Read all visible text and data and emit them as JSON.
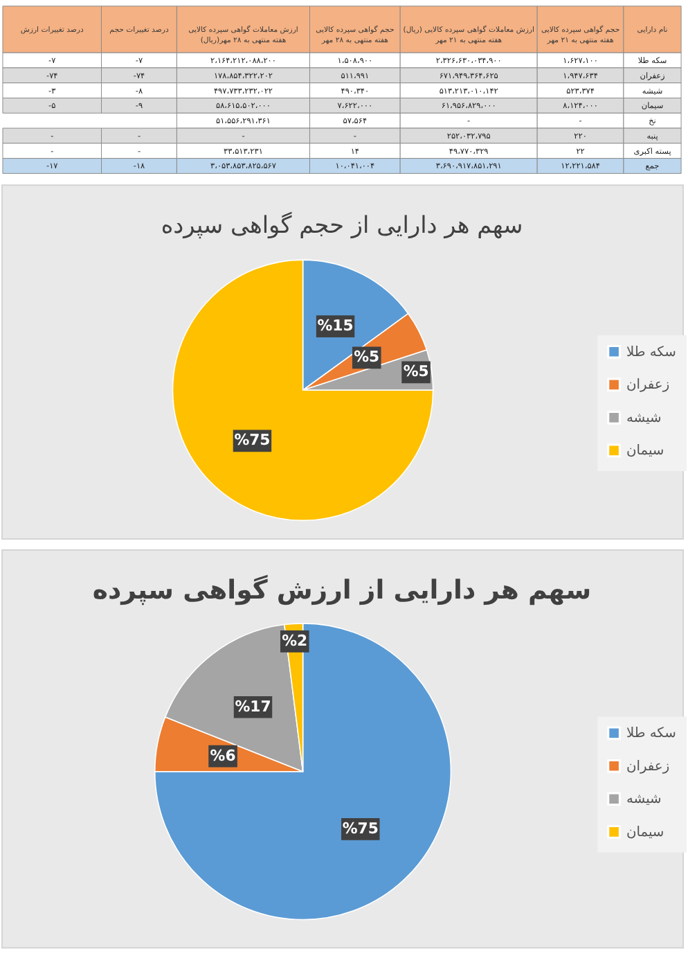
{
  "chart_data": [
    {
      "type": "other",
      "ylabel": "نام دارایی",
      "categories": [
        "درصد تغییرات ارزش",
        "درصد تغییرات حجم",
        "ارزش معاملات گواهی سپرده کالایی (ریال)هفته منتهی به ۲۸ مهر",
        "حجم گواهی سپرده کالایی هفته منتهی به ۲۸ مهر",
        "ارزش معاملات گواهی سپرده کالایی (ریال) هفته منتهی به ۲۱ مهر",
        "حجم گواهی سپرده کالایی هفته منتهی به ۲۱ مهر"
      ],
      "y_categories": [
        "سکه طلا",
        "زعفران",
        "شیشه",
        "سیمان",
        "نخ",
        "پنبه",
        "پسته اکبری",
        "جمع"
      ],
      "cell_labels": [
        [
          "-۷",
          "-۷",
          "۲،۱۶۴،۲۱۲،۰۸۸،۲۰۰",
          "۱،۵۰۸،۹۰۰",
          "۲،۳۲۶،۶۳۰،۰۳۴،۹۰۰",
          "۱،۶۲۷،۱۰۰"
        ],
        [
          "-۷۴",
          "-۷۴",
          "۱۷۸،۸۵۴،۳۲۲،۲۰۲",
          "۵۱۱،۹۹۱",
          "۶۷۱،۹۴۹،۳۶۴،۶۲۵",
          "۱،۹۴۷،۶۳۴"
        ],
        [
          "-۳",
          "-۸",
          "۴۹۷،۷۳۳،۲۳۲،۰۲۲",
          "۴۹۰،۳۴۰",
          "۵۱۳،۲۱۳،۰۱۰،۱۴۲",
          "۵۲۳،۳۷۴"
        ],
        [
          "-۵",
          "-۹",
          "۵۸،۶۱۵،۵۰۲،۰۰۰",
          "۷،۶۲۲،۰۰۰",
          "۶۱،۹۵۶،۸۲۹،۰۰۰",
          "۸،۱۲۴،۰۰۰"
        ],
        [
          null,
          null,
          "۵۱،۵۵۶،۲۹۱،۳۶۱",
          "۵۷،۵۶۴",
          "-",
          "-"
        ],
        [
          "-",
          "-",
          "-",
          "-",
          "۲۵۲،۰۳۲،۷۹۵",
          "۲۲۰"
        ],
        [
          "-",
          "-",
          "۳۳،۵۱۳،۲۳۱",
          "۱۴",
          "۴۹،۷۷۰،۳۲۹",
          "۲۲"
        ],
        [
          "-۱۷",
          "-۱۸",
          "۳،۰۵۳،۸۵۳،۸۲۵،۵۶۷",
          "۱۰،۰۴۱،۰۰۴",
          "۳،۶۹۰،۹۱۷،۸۵۱،۲۹۱",
          "۱۲،۲۲۱،۵۸۴"
        ]
      ]
    },
    {
      "type": "pie",
      "title": "سهم هر دارایی از حجم گواهی سپرده",
      "categories": [
        "سکه طلا",
        "زعفران",
        "شیشه",
        "سیمان"
      ],
      "values": [
        15,
        5,
        5,
        75
      ],
      "colors": [
        "#5b9bd5",
        "#ed7d31",
        "#a5a5a5",
        "#ffc000"
      ],
      "value_labels": [
        "%15",
        "%5",
        "%5",
        "%75"
      ],
      "legend": "right"
    },
    {
      "type": "pie",
      "title": "سهم هر دارایی از ارزش گواهی سپرده",
      "categories": [
        "سکه طلا",
        "زعفران",
        "شیشه",
        "سیمان"
      ],
      "values": [
        75,
        6,
        17,
        2
      ],
      "colors": [
        "#5b9bd5",
        "#ed7d31",
        "#a5a5a5",
        "#ffc000"
      ],
      "value_labels": [
        "%75",
        "%6",
        "%17",
        "%2"
      ],
      "legend": "right"
    }
  ]
}
